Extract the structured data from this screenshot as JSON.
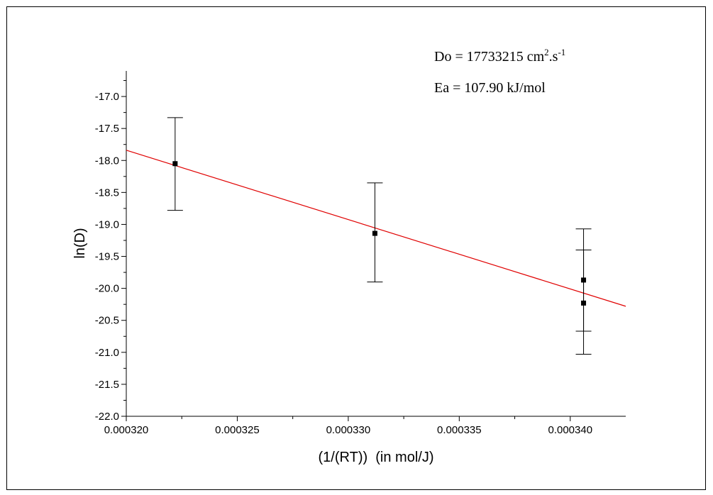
{
  "chart_data": {
    "type": "scatter",
    "xlabel": "(1/(RT))  (in mol/J)",
    "ylabel": "ln(D)",
    "xlim": [
      0.00032,
      0.0003425
    ],
    "ylim": [
      -22.0,
      -16.6
    ],
    "x_ticks": [
      "0.000320",
      "0.000325",
      "0.000330",
      "0.000335",
      "0.000340"
    ],
    "x_tick_values": [
      0.00032,
      0.000325,
      0.00033,
      0.000335,
      0.00034
    ],
    "y_ticks": [
      "-17.0",
      "-17.5",
      "-18.0",
      "-18.5",
      "-19.0",
      "-19.5",
      "-20.0",
      "-20.5",
      "-21.0",
      "-21.5",
      "-22.0"
    ],
    "y_tick_values": [
      -17.0,
      -17.5,
      -18.0,
      -18.5,
      -19.0,
      -19.5,
      -20.0,
      -20.5,
      -21.0,
      -21.5,
      -22.0
    ],
    "points": [
      {
        "x": 0.0003222,
        "y": -18.05,
        "err_low": -18.78,
        "err_high": -17.33
      },
      {
        "x": 0.0003312,
        "y": -19.14,
        "err_low": -19.9,
        "err_high": -18.35
      },
      {
        "x": 0.0003406,
        "y": -19.87,
        "err_low": -20.67,
        "err_high": -19.07
      },
      {
        "x": 0.0003406,
        "y": -20.23,
        "err_low": -21.03,
        "err_high": -19.4
      }
    ],
    "fit_line": {
      "x": [
        0.00032,
        0.0003425
      ],
      "y": [
        -17.84,
        -20.28
      ],
      "color": "#e00000"
    },
    "grid": false,
    "annotations": {
      "do_prefix": "Do = 17733215 cm",
      "do_sup1": "2",
      "do_mid": ".s",
      "do_sup2": "-1",
      "ea": "Ea = 107.90 kJ/mol"
    }
  }
}
